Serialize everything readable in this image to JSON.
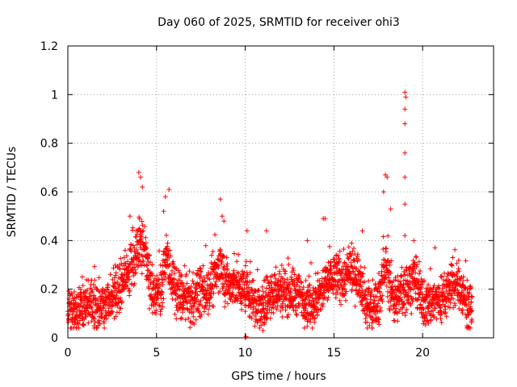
{
  "chart_data": {
    "type": "scatter",
    "title": "Day 060 of 2025, SRMTID for receiver ohi3",
    "xlabel": "GPS time / hours",
    "ylabel": "SRMTID / TECUs",
    "xlim": [
      0,
      24
    ],
    "ylim": [
      0,
      1.2
    ],
    "xticks": [
      0,
      5,
      10,
      15,
      20
    ],
    "xtick_labels": [
      "0",
      "5",
      "10",
      "15",
      "20"
    ],
    "yticks": [
      0,
      0.2,
      0.4,
      0.6,
      0.8,
      1.0,
      1.2
    ],
    "ytick_labels": [
      "0",
      "0.2",
      "0.4",
      "0.6",
      "0.8",
      "1",
      "1.2"
    ],
    "grid": true,
    "marker": "+",
    "color": "#ff0000",
    "time_range_hours": [
      0,
      22.8
    ],
    "series": [
      {
        "name": "SRMTID",
        "trend": [
          [
            0.0,
            0.11
          ],
          [
            0.5,
            0.12
          ],
          [
            1.0,
            0.15
          ],
          [
            1.5,
            0.13
          ],
          [
            2.0,
            0.14
          ],
          [
            2.5,
            0.16
          ],
          [
            3.0,
            0.2
          ],
          [
            3.5,
            0.28
          ],
          [
            3.8,
            0.33
          ],
          [
            4.0,
            0.4
          ],
          [
            4.3,
            0.36
          ],
          [
            4.7,
            0.2
          ],
          [
            5.0,
            0.18
          ],
          [
            5.3,
            0.22
          ],
          [
            5.6,
            0.33
          ],
          [
            6.0,
            0.2
          ],
          [
            6.5,
            0.16
          ],
          [
            7.0,
            0.15
          ],
          [
            7.5,
            0.19
          ],
          [
            8.0,
            0.2
          ],
          [
            8.6,
            0.3
          ],
          [
            9.0,
            0.22
          ],
          [
            9.5,
            0.21
          ],
          [
            10.0,
            0.2
          ],
          [
            10.5,
            0.15
          ],
          [
            11.0,
            0.12
          ],
          [
            11.5,
            0.18
          ],
          [
            12.0,
            0.2
          ],
          [
            12.5,
            0.19
          ],
          [
            13.0,
            0.18
          ],
          [
            13.5,
            0.15
          ],
          [
            14.0,
            0.14
          ],
          [
            14.5,
            0.22
          ],
          [
            15.0,
            0.26
          ],
          [
            15.5,
            0.24
          ],
          [
            16.0,
            0.27
          ],
          [
            16.5,
            0.25
          ],
          [
            16.8,
            0.14
          ],
          [
            17.2,
            0.12
          ],
          [
            17.5,
            0.16
          ],
          [
            17.9,
            0.3
          ],
          [
            18.2,
            0.2
          ],
          [
            18.5,
            0.15
          ],
          [
            19.0,
            0.2
          ],
          [
            19.5,
            0.25
          ],
          [
            20.0,
            0.14
          ],
          [
            20.5,
            0.15
          ],
          [
            21.0,
            0.16
          ],
          [
            21.5,
            0.2
          ],
          [
            22.0,
            0.22
          ],
          [
            22.5,
            0.15
          ],
          [
            22.8,
            0.1
          ]
        ],
        "spread": 0.07,
        "points_per_hour": 120,
        "peaks": [
          {
            "x": 3.5,
            "y": 0.5
          },
          {
            "x": 4.0,
            "y": 0.68
          },
          {
            "x": 4.1,
            "y": 0.66
          },
          {
            "x": 4.2,
            "y": 0.62
          },
          {
            "x": 5.5,
            "y": 0.58
          },
          {
            "x": 5.7,
            "y": 0.61
          },
          {
            "x": 5.4,
            "y": 0.52
          },
          {
            "x": 8.6,
            "y": 0.57
          },
          {
            "x": 8.7,
            "y": 0.5
          },
          {
            "x": 8.8,
            "y": 0.48
          },
          {
            "x": 10.1,
            "y": 0.44
          },
          {
            "x": 11.2,
            "y": 0.44
          },
          {
            "x": 14.4,
            "y": 0.49
          },
          {
            "x": 14.5,
            "y": 0.49
          },
          {
            "x": 13.5,
            "y": 0.4
          },
          {
            "x": 16.6,
            "y": 0.44
          },
          {
            "x": 17.9,
            "y": 0.67
          },
          {
            "x": 18.0,
            "y": 0.66
          },
          {
            "x": 17.8,
            "y": 0.6
          },
          {
            "x": 18.2,
            "y": 0.53
          },
          {
            "x": 19.0,
            "y": 1.01
          },
          {
            "x": 19.05,
            "y": 0.99
          },
          {
            "x": 19.0,
            "y": 0.94
          },
          {
            "x": 19.0,
            "y": 0.88
          },
          {
            "x": 19.0,
            "y": 0.76
          },
          {
            "x": 19.0,
            "y": 0.66
          },
          {
            "x": 19.0,
            "y": 0.55
          },
          {
            "x": 19.0,
            "y": 0.42
          },
          {
            "x": 19.5,
            "y": 0.4
          },
          {
            "x": 20.7,
            "y": 0.37
          },
          {
            "x": 21.7,
            "y": 0.33
          },
          {
            "x": 10.0,
            "y": 0.0
          },
          {
            "x": 10.05,
            "y": 0.005
          },
          {
            "x": 11.0,
            "y": 0.03
          },
          {
            "x": 17.0,
            "y": 0.05
          }
        ]
      }
    ]
  }
}
